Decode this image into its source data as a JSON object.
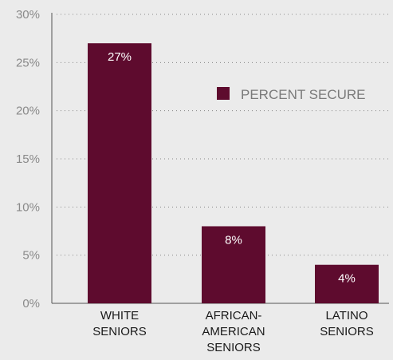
{
  "chart_data": {
    "type": "bar",
    "categories": [
      [
        "WHITE",
        "SENIORS"
      ],
      [
        "AFRICAN-",
        "AMERICAN",
        "SENIORS"
      ],
      [
        "LATINO",
        "SENIORS"
      ]
    ],
    "series": [
      {
        "name": "PERCENT SECURE",
        "values": [
          27,
          8,
          4
        ],
        "color": "#5e0b2e"
      }
    ],
    "data_labels": [
      "27%",
      "8%",
      "4%"
    ],
    "y_ticks": [
      "0%",
      "5%",
      "10%",
      "15%",
      "20%",
      "25%",
      "30%"
    ],
    "ylim": [
      0,
      30
    ],
    "grid": "dotted horizontal",
    "legend_position": "upper-right",
    "colors": {
      "bar": "#5e0b2e",
      "background": "#ebebeb",
      "axis": "#555555",
      "grid": "#888888"
    }
  }
}
